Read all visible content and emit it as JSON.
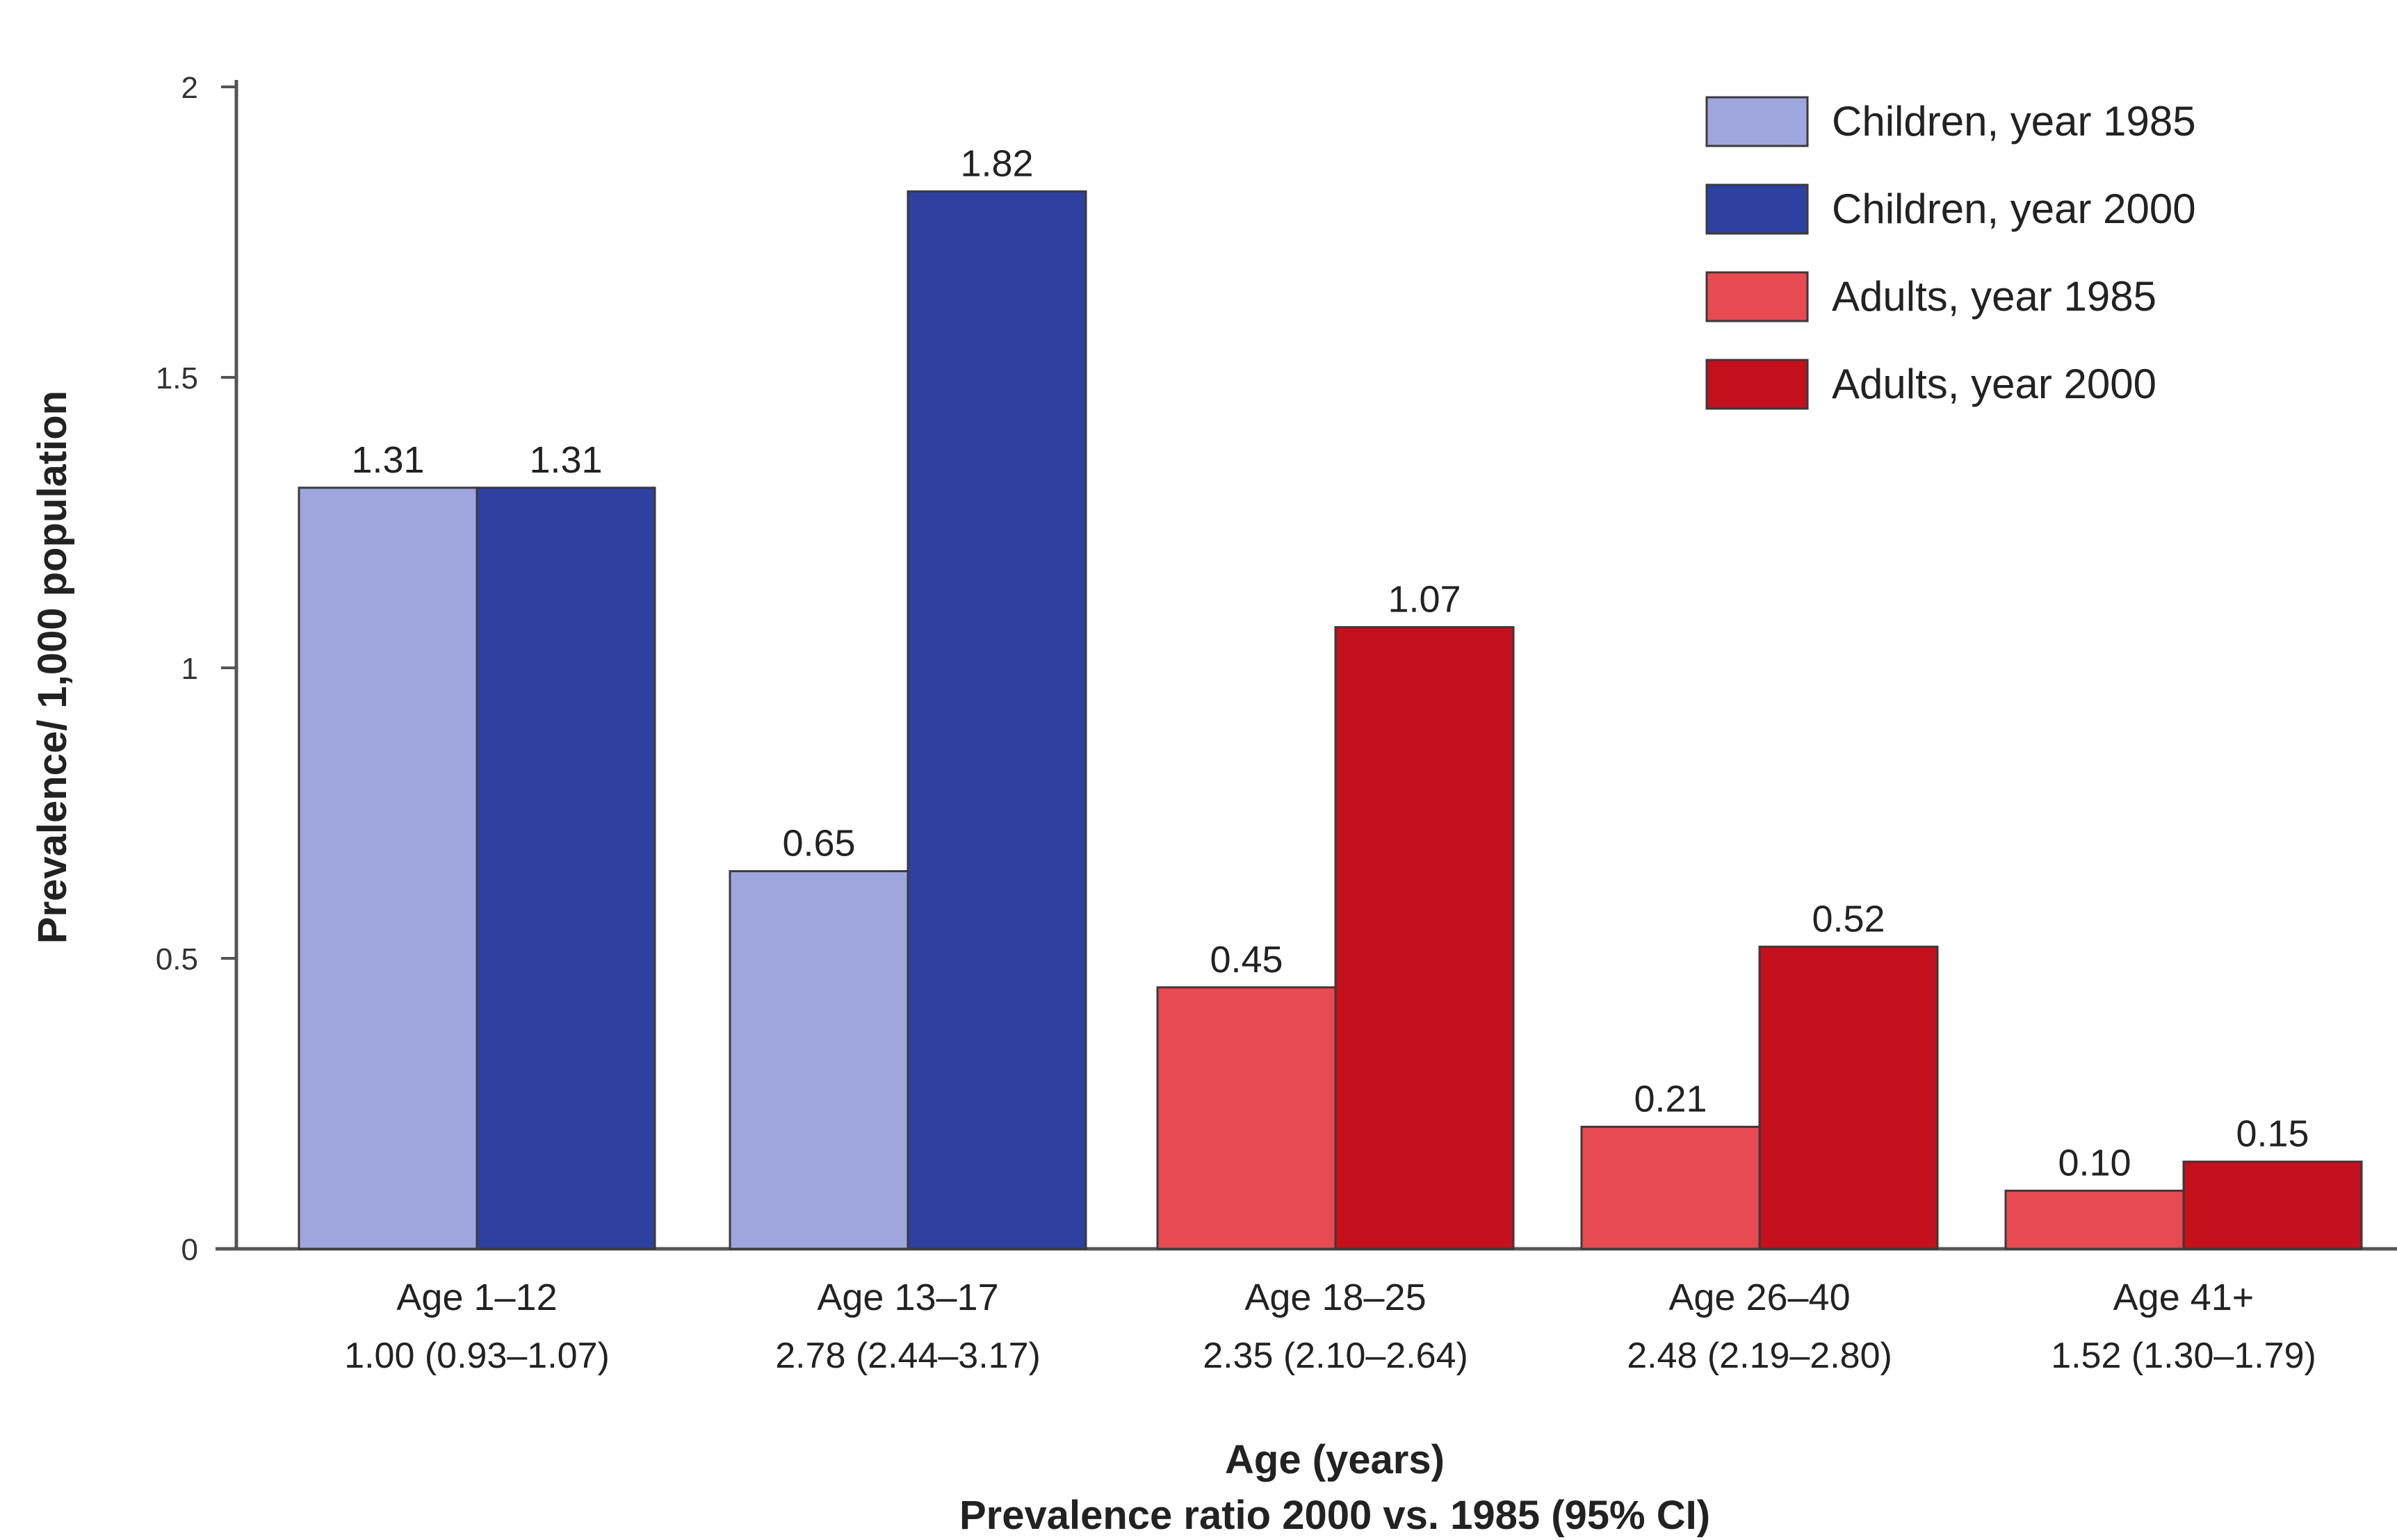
{
  "chart_data": {
    "type": "bar",
    "title": "",
    "ylabel": "Prevalence/ 1,000 population",
    "xlabel": "Age (years)",
    "xlabel2": "Prevalence ratio 2000 vs. 1985 (95% CI)",
    "ylim": [
      0,
      2
    ],
    "yticks": [
      "0",
      "0.5",
      "1",
      "1.5",
      "2"
    ],
    "yticks_values": [
      0,
      0.5,
      1,
      1.5,
      2
    ],
    "grid": false,
    "legend_position": "top-right",
    "categories": [
      "Age 1–12",
      "Age 13–17",
      "Age 18–25",
      "Age 26–40",
      "Age 41+"
    ],
    "ratios": [
      "1.00 (0.93–1.07)",
      "2.78 (2.44–3.17)",
      "2.35 (2.10–2.64)",
      "2.48 (2.19–2.80)",
      "1.52 (1.30–1.79)"
    ],
    "bars": [
      {
        "category": 0,
        "series": 0,
        "value": 1.31,
        "label": "1.31"
      },
      {
        "category": 0,
        "series": 1,
        "value": 1.31,
        "label": "1.31"
      },
      {
        "category": 1,
        "series": 0,
        "value": 0.65,
        "label": "0.65"
      },
      {
        "category": 1,
        "series": 1,
        "value": 1.82,
        "label": "1.82"
      },
      {
        "category": 2,
        "series": 2,
        "value": 0.45,
        "label": "0.45"
      },
      {
        "category": 2,
        "series": 3,
        "value": 1.07,
        "label": "1.07"
      },
      {
        "category": 3,
        "series": 2,
        "value": 0.21,
        "label": "0.21"
      },
      {
        "category": 3,
        "series": 3,
        "value": 0.52,
        "label": "0.52"
      },
      {
        "category": 4,
        "series": 2,
        "value": 0.1,
        "label": "0.10"
      },
      {
        "category": 4,
        "series": 3,
        "value": 0.15,
        "label": "0.15"
      }
    ],
    "series": [
      {
        "name": "Children, year 1985",
        "color": "#9ea6dd"
      },
      {
        "name": "Children, year 2000",
        "color": "#2e40a0"
      },
      {
        "name": "Adults, year 1985",
        "color": "#e84a52"
      },
      {
        "name": "Adults, year 2000",
        "color": "#c4101c"
      }
    ]
  }
}
